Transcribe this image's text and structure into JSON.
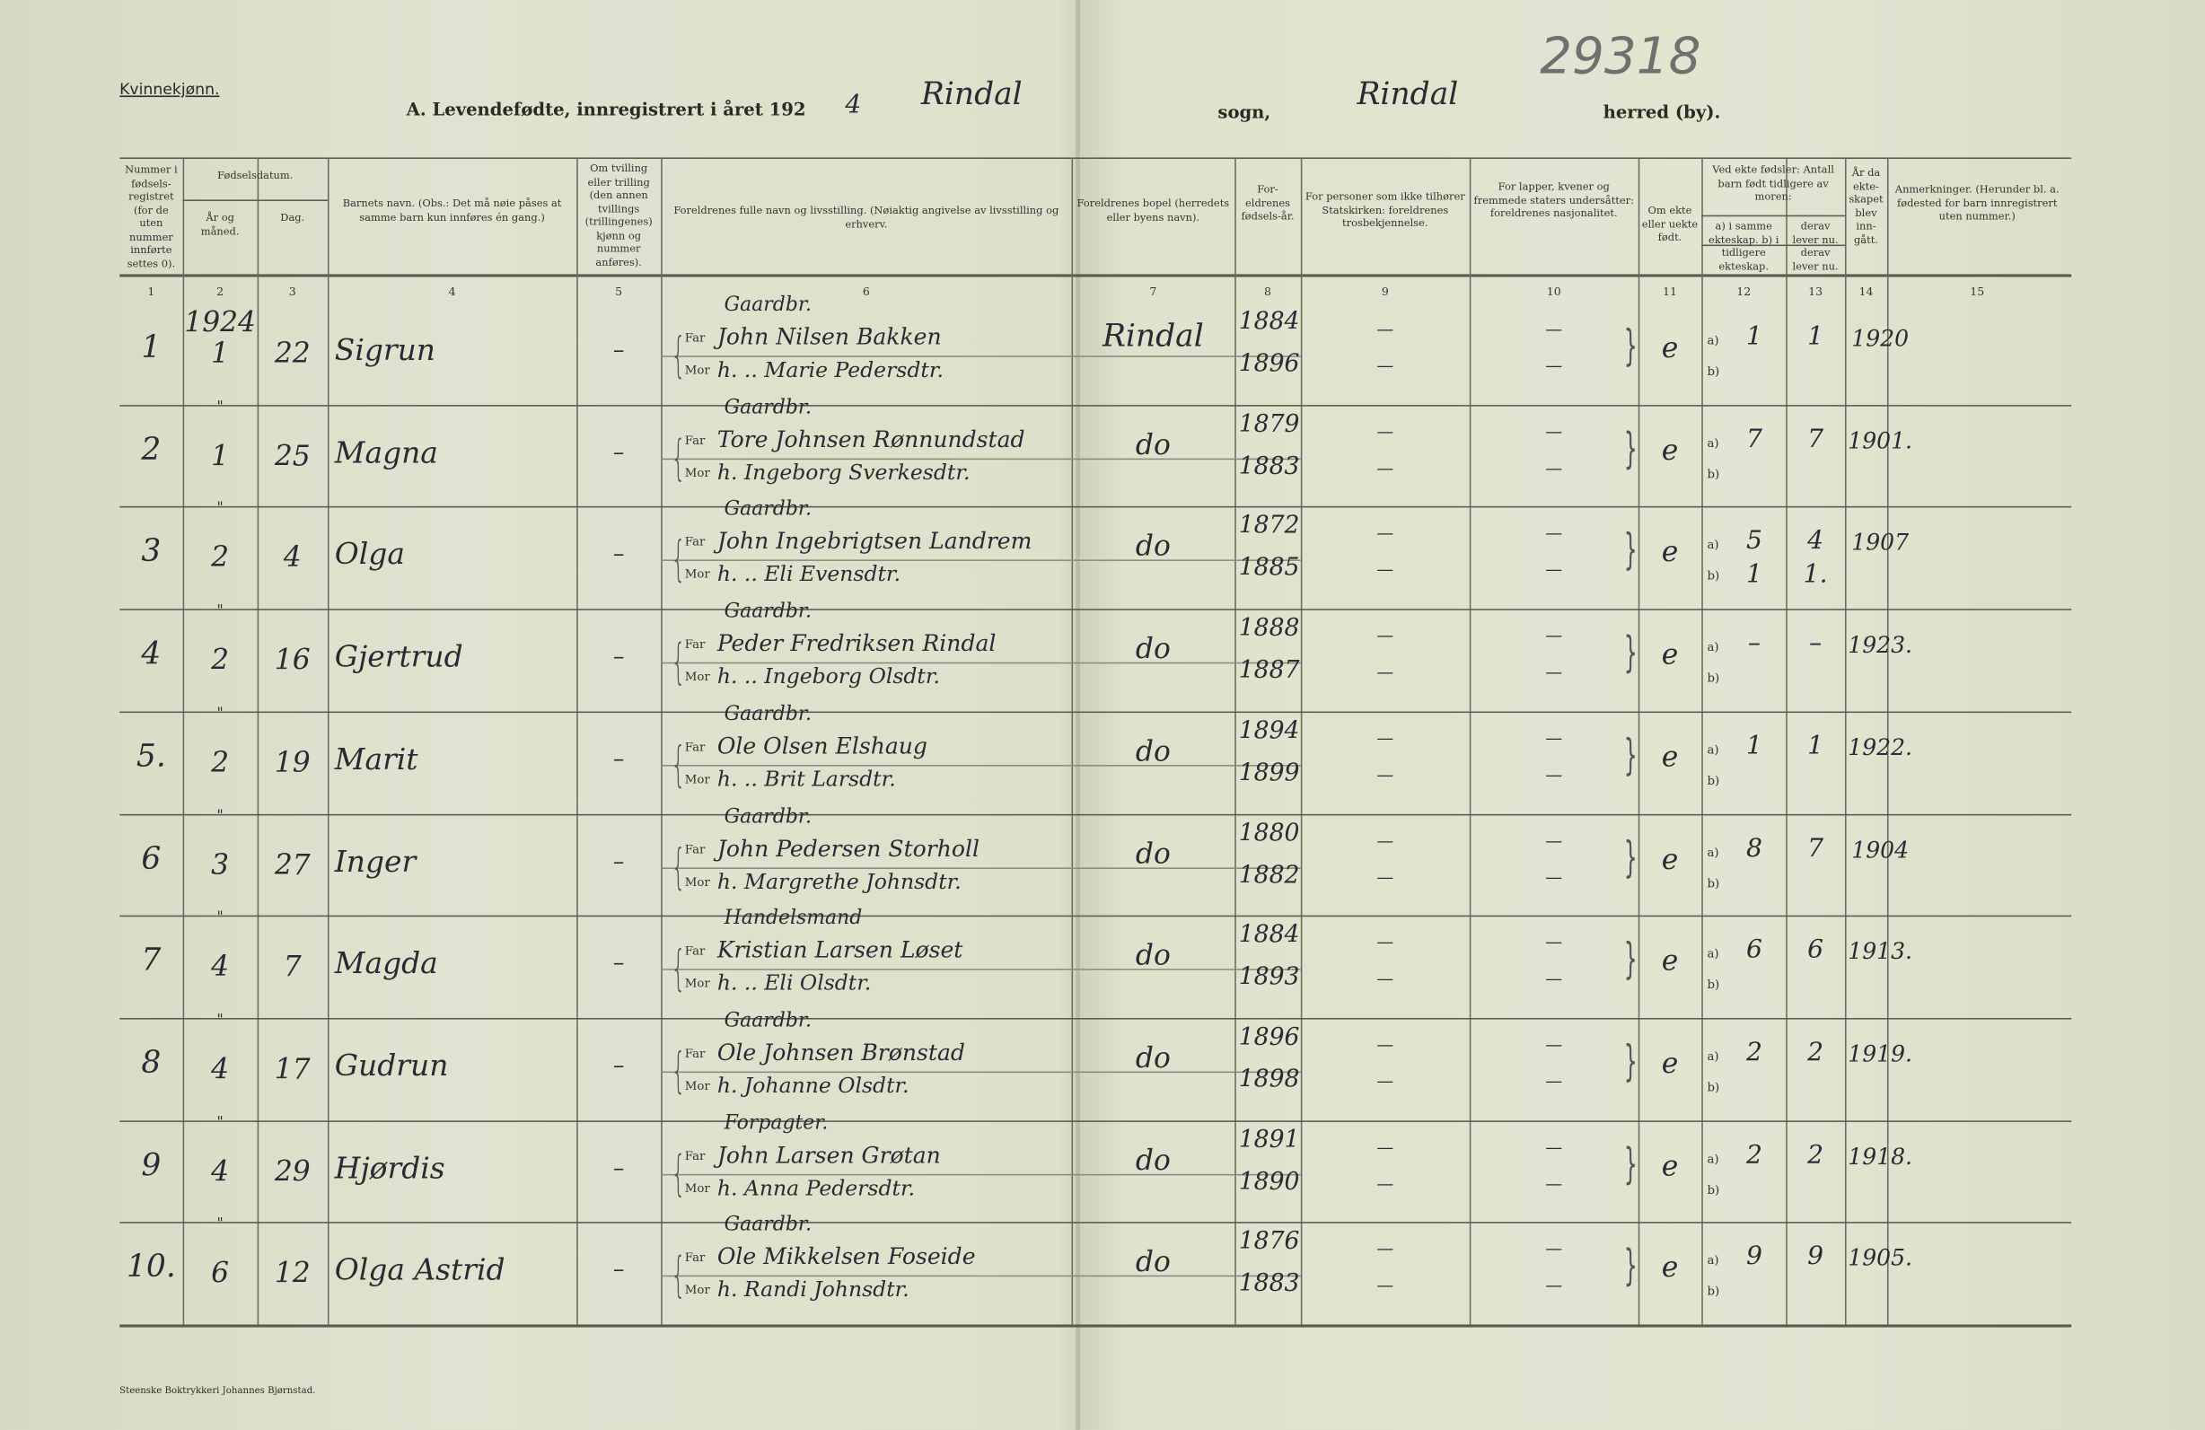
{
  "header": {
    "gender": "Kvinnekjønn.",
    "title_prefix": "A.  Levendefødte, innregistrert i året 192",
    "year_digit": "4",
    "parish_name": "Rindal",
    "parish_label": "sogn,",
    "municipality_name": "Rindal",
    "municipality_label": "herred (by).",
    "archive_number": "29318"
  },
  "columns": [
    {
      "num": "1",
      "label": "Nummer i fødsels-registret (for de uten nummer innførte settes 0)."
    },
    {
      "num": "2",
      "label": "År og måned."
    },
    {
      "num": "3",
      "label": "Dag."
    },
    {
      "num": "4",
      "label": "Barnets navn. (Obs.: Det må nøie påses at samme barn kun innføres én gang.)"
    },
    {
      "num": "5",
      "label": "Om tvilling eller trilling (den annen tvillings (trillingenes) kjønn og nummer anføres)."
    },
    {
      "num": "6",
      "label": "Foreldrenes fulle navn og livsstilling. (Nøiaktig angivelse av livsstilling og erhverv."
    },
    {
      "num": "7",
      "label": "Foreldrenes bopel (herredets eller byens navn)."
    },
    {
      "num": "8",
      "label": "For-eldrenes fødsels-år."
    },
    {
      "num": "9",
      "label": "For personer som ikke tilhører Statskirken: foreldrenes trosbekjennelse."
    },
    {
      "num": "10",
      "label": "For lapper, kvener og fremmede staters undersåtter: foreldrenes nasjonalitet."
    },
    {
      "num": "11",
      "label": "Om ekte eller uekte født."
    },
    {
      "num": "12",
      "label": "a) i samme ekteskap. b) i tidligere ekteskap."
    },
    {
      "num": "13",
      "label": "derav lever nu. derav lever nu."
    },
    {
      "num": "14",
      "label": "År da ekte-skapet blev inn-gått."
    },
    {
      "num": "15",
      "label": "Anmerkninger. (Herunder bl. a. fødested for barn innregistrert uten nummer.)"
    }
  ],
  "group_headers": {
    "birthdate": "Fødselsdatum.",
    "prior_children": "Ved ekte fødsler: Antall barn født tidligere av moren:"
  },
  "labels": {
    "far": "Far",
    "mor": "Mor",
    "a": "a)",
    "b": "b)"
  },
  "rows": [
    {
      "nr": "1",
      "year": "1924",
      "month": "1",
      "day": "22",
      "name": "Sigrun",
      "occupation": "Gaardbr.",
      "father": "John Nilsen Bakken",
      "mother": "h. .. Marie Pedersdtr.",
      "residence": "Rindal",
      "father_born": "1884",
      "mother_born": "1896",
      "faith": "—",
      "nationality": "—",
      "legit": "e",
      "a_born": "1",
      "a_living": "1",
      "b_born": "",
      "b_living": "",
      "married": "1920"
    },
    {
      "nr": "2",
      "year": "\"",
      "month": "1",
      "day": "25",
      "name": "Magna",
      "occupation": "Gaardbr.",
      "father": "Tore Johnsen Rønnundstad",
      "mother": "h. Ingeborg Sverkesdtr.",
      "residence": "do",
      "father_born": "1879",
      "mother_born": "1883",
      "faith": "—",
      "nationality": "—",
      "legit": "e",
      "a_born": "7",
      "a_living": "7",
      "b_born": "",
      "b_living": "",
      "married": "1901."
    },
    {
      "nr": "3",
      "year": "\"",
      "month": "2",
      "day": "4",
      "name": "Olga",
      "occupation": "Gaardbr.",
      "father": "John Ingebrigtsen Landrem",
      "mother": "h. .. Eli Evensdtr.",
      "residence": "do",
      "father_born": "1872",
      "mother_born": "1885",
      "faith": "—",
      "nationality": "—",
      "legit": "e",
      "a_born": "5",
      "a_living": "4",
      "b_born": "1",
      "b_living": "1.",
      "married": "1907"
    },
    {
      "nr": "4",
      "year": "\"",
      "month": "2",
      "day": "16",
      "name": "Gjertrud",
      "occupation": "Gaardbr.",
      "father": "Peder Fredriksen Rindal",
      "mother": "h. .. Ingeborg Olsdtr.",
      "residence": "do",
      "father_born": "1888",
      "mother_born": "1887",
      "faith": "—",
      "nationality": "—",
      "legit": "e",
      "a_born": "–",
      "a_living": "–",
      "b_born": "",
      "b_living": "",
      "married": "1923."
    },
    {
      "nr": "5.",
      "year": "\"",
      "month": "2",
      "day": "19",
      "name": "Marit",
      "occupation": "Gaardbr.",
      "father": "Ole Olsen Elshaug",
      "mother": "h. .. Brit Larsdtr.",
      "residence": "do",
      "father_born": "1894",
      "mother_born": "1899",
      "faith": "—",
      "nationality": "—",
      "legit": "e",
      "a_born": "1",
      "a_living": "1",
      "b_born": "",
      "b_living": "",
      "married": "1922."
    },
    {
      "nr": "6",
      "year": "\"",
      "month": "3",
      "day": "27",
      "name": "Inger",
      "occupation": "Gaardbr.",
      "father": "John Pedersen Storholl",
      "mother": "h. Margrethe Johnsdtr.",
      "residence": "do",
      "father_born": "1880",
      "mother_born": "1882",
      "faith": "—",
      "nationality": "—",
      "legit": "e",
      "a_born": "8",
      "a_living": "7",
      "b_born": "",
      "b_living": "",
      "married": "1904"
    },
    {
      "nr": "7",
      "year": "\"",
      "month": "4",
      "day": "7",
      "name": "Magda",
      "occupation": "Handelsmand",
      "father": "Kristian Larsen Løset",
      "mother": "h. .. Eli Olsdtr.",
      "residence": "do",
      "father_born": "1884",
      "mother_born": "1893",
      "faith": "—",
      "nationality": "—",
      "legit": "e",
      "a_born": "6",
      "a_living": "6",
      "b_born": "",
      "b_living": "",
      "married": "1913."
    },
    {
      "nr": "8",
      "year": "\"",
      "month": "4",
      "day": "17",
      "name": "Gudrun",
      "occupation": "Gaardbr.",
      "father": "Ole Johnsen Brønstad",
      "mother": "h. Johanne Olsdtr.",
      "residence": "do",
      "father_born": "1896",
      "mother_born": "1898",
      "faith": "—",
      "nationality": "—",
      "legit": "e",
      "a_born": "2",
      "a_living": "2",
      "b_born": "",
      "b_living": "",
      "married": "1919."
    },
    {
      "nr": "9",
      "year": "\"",
      "month": "4",
      "day": "29",
      "name": "Hjørdis",
      "occupation": "Forpagter.",
      "father": "John Larsen Grøtan",
      "mother": "h. Anna Pedersdtr.",
      "residence": "do",
      "father_born": "1891",
      "mother_born": "1890",
      "faith": "—",
      "nationality": "—",
      "legit": "e",
      "a_born": "2",
      "a_living": "2",
      "b_born": "",
      "b_living": "",
      "married": "1918."
    },
    {
      "nr": "10.",
      "year": "\"",
      "month": "6",
      "day": "12",
      "name": "Olga Astrid",
      "occupation": "Gaardbr.",
      "father": "Ole Mikkelsen Foseide",
      "mother": "h. Randi Johnsdtr.",
      "residence": "do",
      "father_born": "1876",
      "mother_born": "1883",
      "faith": "—",
      "nationality": "—",
      "legit": "e",
      "a_born": "9",
      "a_living": "9",
      "b_born": "",
      "b_living": "",
      "married": "1905."
    }
  ],
  "footer": {
    "printer": "Steenske Boktrykkeri Johannes Bjørnstad."
  }
}
